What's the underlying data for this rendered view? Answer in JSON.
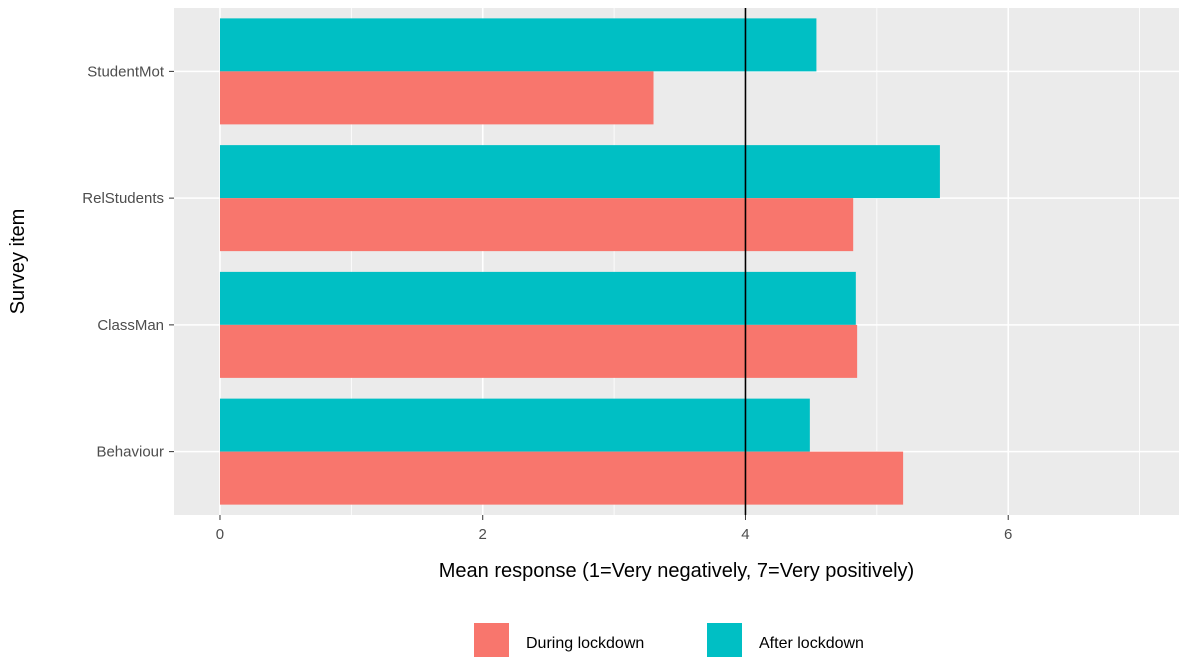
{
  "chart_data": {
    "type": "bar",
    "orientation": "horizontal",
    "categories": [
      "StudentMot",
      "RelStudents",
      "ClassMan",
      "Behaviour"
    ],
    "series": [
      {
        "name": "During lockdown",
        "color": "#F8766D",
        "values": [
          3.3,
          4.82,
          4.85,
          5.2
        ]
      },
      {
        "name": "After lockdown",
        "color": "#00BFC4",
        "values": [
          4.54,
          5.48,
          4.84,
          4.49
        ]
      }
    ],
    "xlabel": "Mean response (1=Very negatively, 7=Very positively)",
    "ylabel": "Survey item",
    "xlim": [
      -0.35,
      7.3
    ],
    "x_ticks": [
      0,
      2,
      4,
      6
    ],
    "reference_line": 4,
    "grid": true,
    "legend_position": "bottom",
    "panel_color": "#EBEBEB"
  }
}
